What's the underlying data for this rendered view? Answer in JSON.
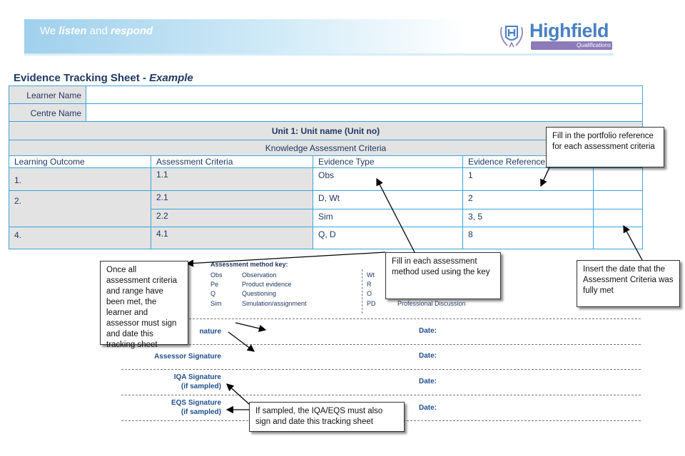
{
  "banner": {
    "tagline_pre": "We ",
    "tagline_listen": "listen",
    "tagline_mid": " and ",
    "tagline_respond": "respond"
  },
  "logo": {
    "name": "Highfield",
    "sub": "Qualifications"
  },
  "title": {
    "main": "Evidence Tracking Sheet - ",
    "italic": "Example"
  },
  "table": {
    "learner_name_label": "Learner Name",
    "centre_name_label": "Centre Name",
    "unit_header": "Unit 1: Unit name (Unit no)",
    "section_header": "Knowledge Assessment Criteria",
    "columns": [
      "Learning Outcome",
      "Assessment Criteria",
      "Evidence Type",
      "Evidence Reference"
    ],
    "rows": [
      {
        "lo": "1.",
        "ac": "1.1",
        "type": "Obs",
        "ref": "1"
      },
      {
        "lo": "2.",
        "ac": "2.1",
        "type": "D, Wt",
        "ref": "2"
      },
      {
        "lo": "",
        "ac": "2.2",
        "type": "Sim",
        "ref": "3, 5"
      },
      {
        "lo": "4.",
        "ac": "4.1",
        "type": "Q, D",
        "ref": "8"
      }
    ]
  },
  "key": {
    "title": "Assessment method key:",
    "left": [
      {
        "code": "Obs",
        "desc": "Observation"
      },
      {
        "code": "Pe",
        "desc": "Product evidence"
      },
      {
        "code": "Q",
        "desc": "Questioning"
      },
      {
        "code": "Sim",
        "desc": "Simulation/assignment"
      }
    ],
    "right": [
      {
        "code": "Wt",
        "desc": ""
      },
      {
        "code": "R",
        "desc": ""
      },
      {
        "code": "O",
        "desc": ""
      },
      {
        "code": "PD",
        "desc": "Professional Discussion"
      }
    ]
  },
  "signatures": {
    "learner": "nature",
    "assessor": "Assessor Signature",
    "iqa_1": "IQA Signature",
    "iqa_2": "(if sampled)",
    "eqs_1": "EQS Signature",
    "eqs_2": "(if sampled)",
    "date": "Date:"
  },
  "callouts": {
    "portfolio": "Fill in the portfolio reference for each assessment criteria",
    "method": "Fill in each assessment method used using the key",
    "date": "Insert the date that the Assessment Criteria was fully met",
    "sign": "Once all assessment criteria and range have been met, the learner and assessor must sign and date this tracking sheet",
    "sampled": "If sampled, the IQA/EQS must also sign and date this tracking sheet"
  }
}
